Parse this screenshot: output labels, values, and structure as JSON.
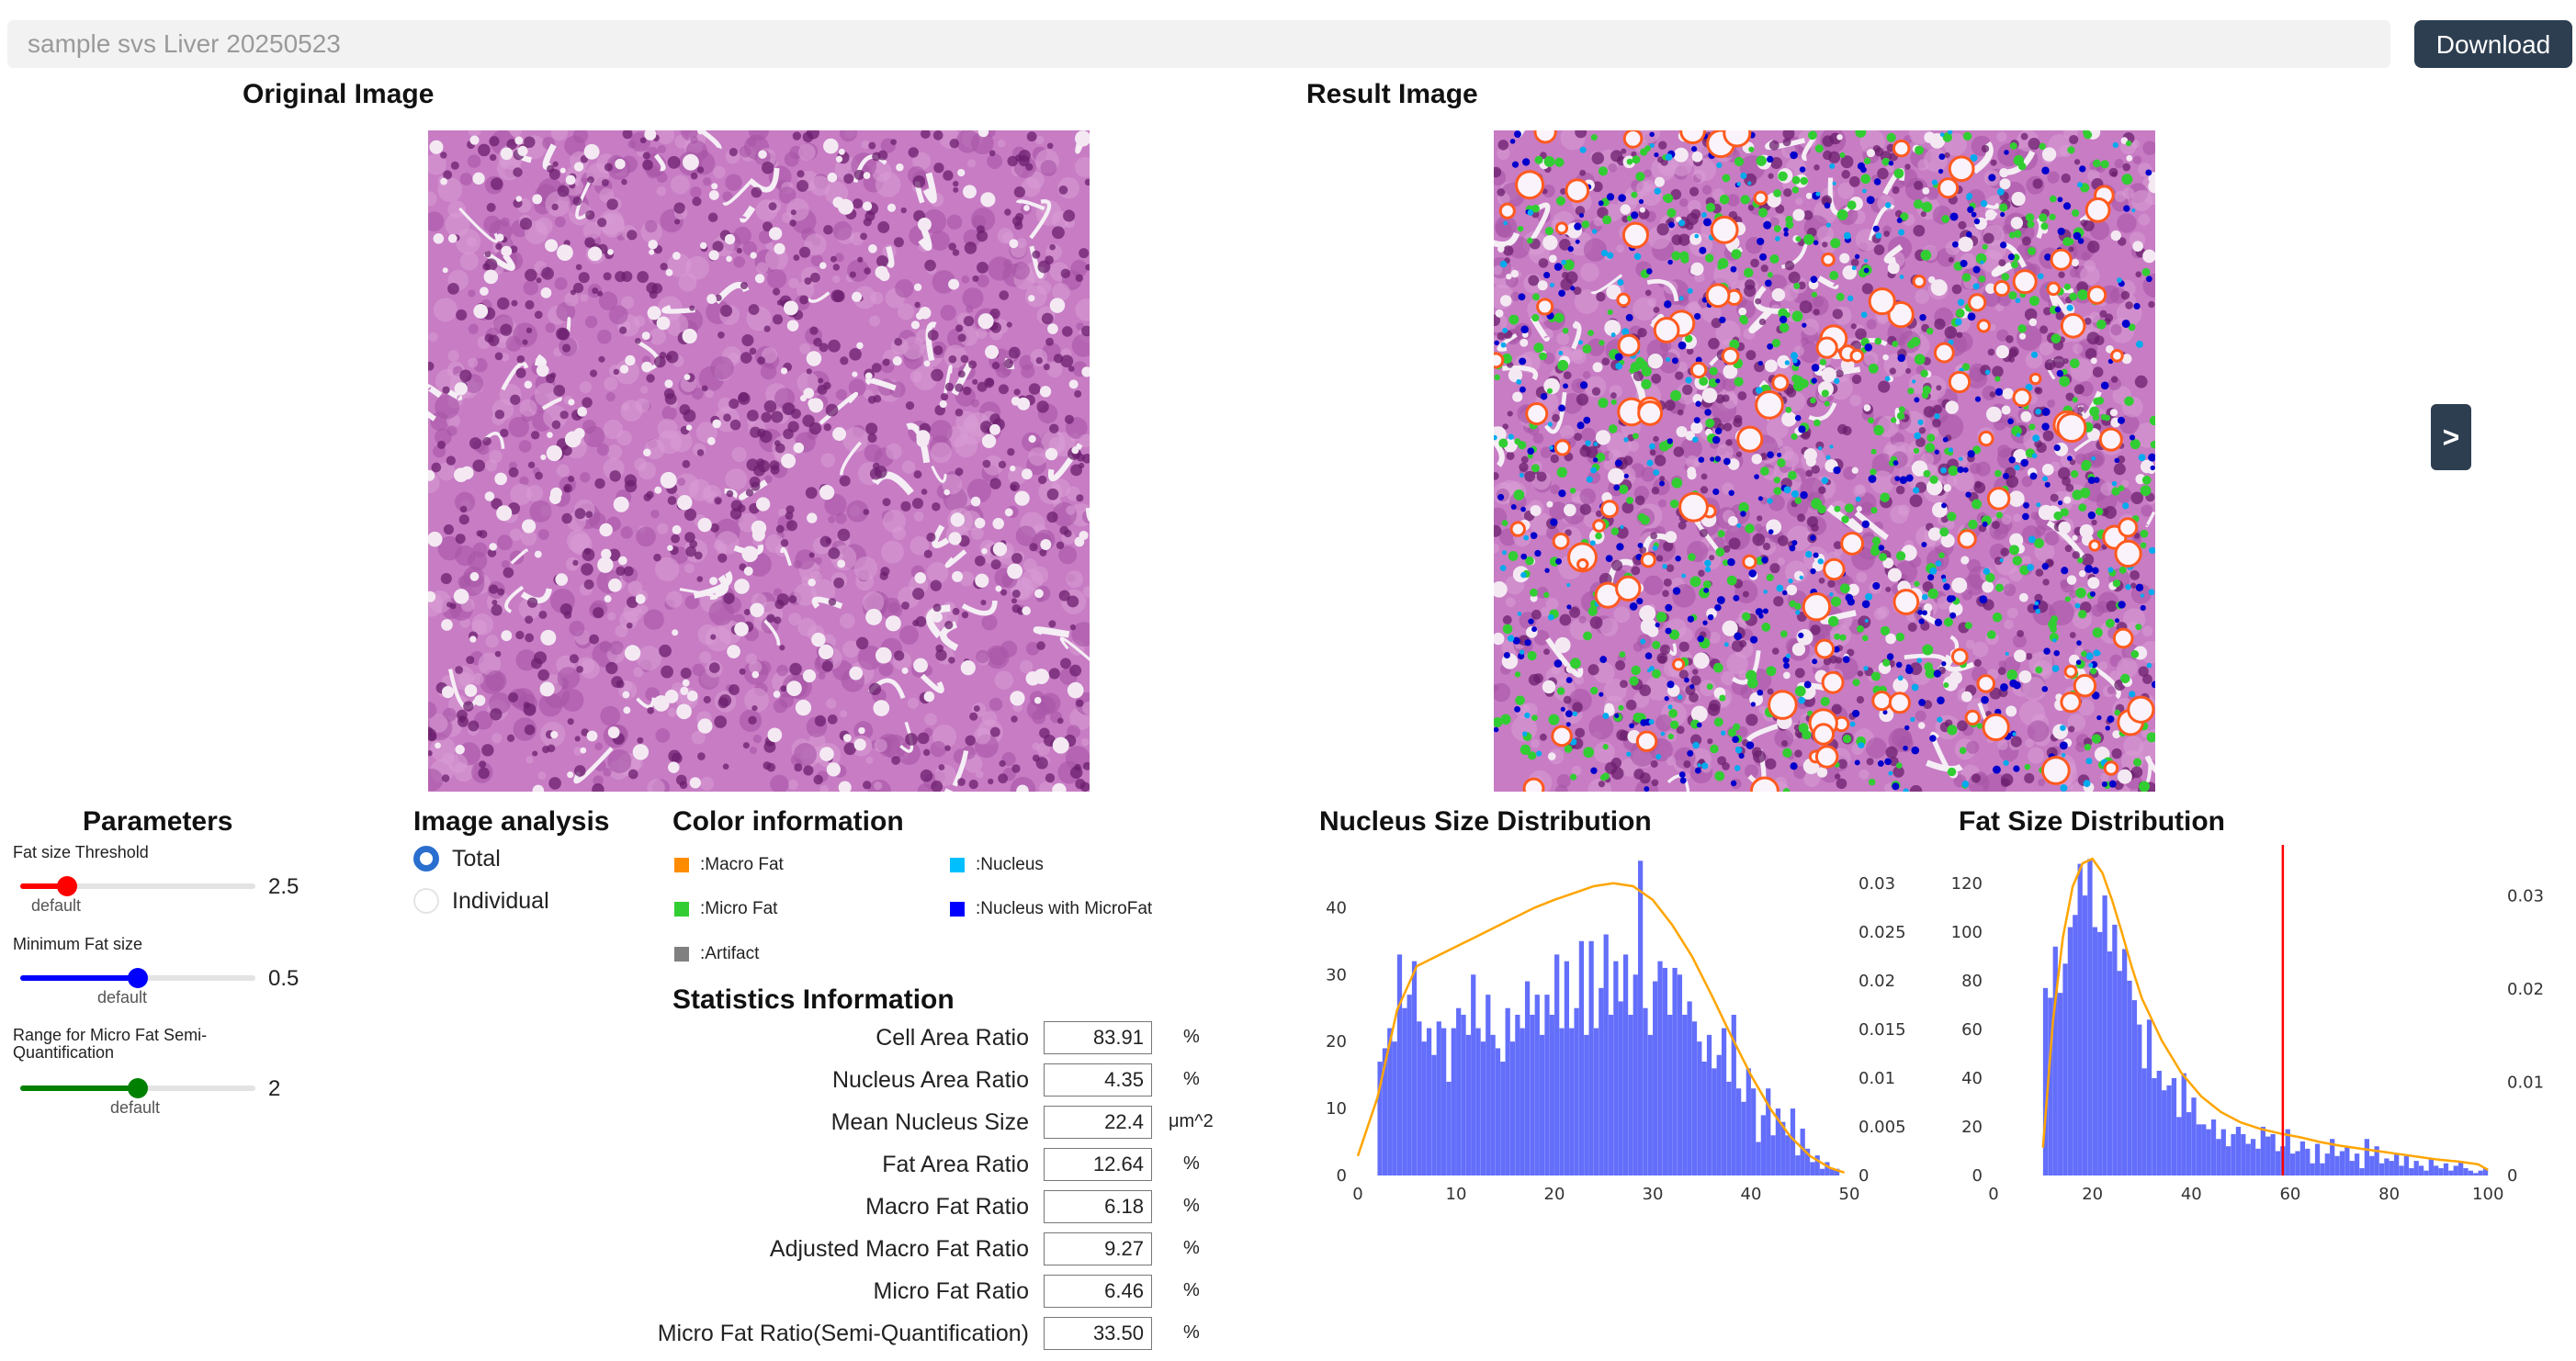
{
  "header": {
    "title_value": "sample svs Liver 20250523",
    "download_label": "Download"
  },
  "panels": {
    "original_title": "Original Image",
    "result_title": "Result Image",
    "next_label": ">"
  },
  "parameters": {
    "title": "Parameters",
    "sliders": [
      {
        "label": "Fat size Threshold",
        "value": "2.5",
        "default_label": "default",
        "color": "#ff0000",
        "level": 0.2
      },
      {
        "label": "Minimum Fat size",
        "value": "0.5",
        "default_label": "default",
        "color": "#0000ff",
        "level": 0.5
      },
      {
        "label": "Range for Micro Fat Semi-Quantification",
        "value": "2",
        "default_label": "default",
        "color": "#008000",
        "level": 0.5
      }
    ]
  },
  "image_analysis": {
    "title": "Image analysis",
    "options": [
      {
        "label": "Total",
        "selected": true
      },
      {
        "label": "Individual",
        "selected": false
      }
    ]
  },
  "color_information": {
    "title": "Color information",
    "items": [
      {
        "label": ":Macro Fat",
        "color": "#ff8c00"
      },
      {
        "label": ":Nucleus",
        "color": "#00bfff"
      },
      {
        "label": ":Micro Fat",
        "color": "#32cd32"
      },
      {
        "label": ":Nucleus with MicroFat",
        "color": "#0000ff"
      },
      {
        "label": ":Artifact",
        "color": "#808080"
      }
    ]
  },
  "statistics": {
    "title": "Statistics Information",
    "rows": [
      {
        "label": "Cell Area Ratio",
        "value": "83.91",
        "unit": "%"
      },
      {
        "label": "Nucleus Area Ratio",
        "value": "4.35",
        "unit": "%"
      },
      {
        "label": "Mean Nucleus Size",
        "value": "22.4",
        "unit": "μm^2"
      },
      {
        "label": "Fat Area Ratio",
        "value": "12.64",
        "unit": "%"
      },
      {
        "label": "Macro Fat Ratio",
        "value": "6.18",
        "unit": "%"
      },
      {
        "label": "Adjusted Macro Fat Ratio",
        "value": "9.27",
        "unit": "%"
      },
      {
        "label": "Micro Fat Ratio",
        "value": "6.46",
        "unit": "%"
      },
      {
        "label": "Micro Fat Ratio(Semi-Quantification)",
        "value": "33.50",
        "unit": "%"
      }
    ]
  },
  "chart_data": [
    {
      "type": "bar",
      "title": "Nucleus Size Distribution",
      "bar_color": "#636efa",
      "curve_color": "#ffa500",
      "x": [
        2.25,
        2.75,
        3.25,
        3.75,
        4.25,
        4.75,
        5.25,
        5.75,
        6.25,
        6.75,
        7.25,
        7.75,
        8.25,
        8.75,
        9.25,
        9.75,
        10.25,
        10.75,
        11.25,
        11.75,
        12.25,
        12.75,
        13.25,
        13.75,
        14.25,
        14.75,
        15.25,
        15.75,
        16.25,
        16.75,
        17.25,
        17.75,
        18.25,
        18.75,
        19.25,
        19.75,
        20.25,
        20.75,
        21.25,
        21.75,
        22.25,
        22.75,
        23.25,
        23.75,
        24.25,
        24.75,
        25.25,
        25.75,
        26.25,
        26.75,
        27.25,
        27.75,
        28.25,
        28.75,
        29.25,
        29.75,
        30.25,
        30.75,
        31.25,
        31.75,
        32.25,
        32.75,
        33.25,
        33.75,
        34.25,
        34.75,
        35.25,
        35.75,
        36.25,
        36.75,
        37.25,
        37.75,
        38.25,
        38.75,
        39.25,
        39.75,
        40.25,
        40.75,
        41.25,
        41.75,
        42.25,
        42.75,
        43.25,
        43.75,
        44.25,
        44.75,
        45.25,
        45.75,
        46.25,
        46.75,
        47.25,
        47.75,
        48.25,
        48.75
      ],
      "y": [
        17,
        19,
        22,
        20,
        33,
        25,
        27,
        32,
        23,
        20,
        22,
        18,
        23,
        22,
        14,
        22,
        25,
        24,
        21,
        30,
        22,
        20,
        27,
        21,
        19,
        17,
        25,
        20,
        24,
        22,
        29,
        24,
        27,
        21,
        27,
        24,
        33,
        22,
        32,
        22,
        25,
        35,
        21,
        35,
        22,
        28,
        36,
        24,
        32,
        26,
        33,
        24,
        30,
        47,
        25,
        21,
        29,
        32,
        31,
        24,
        31,
        30,
        24,
        26,
        23,
        20,
        17,
        21,
        16,
        18,
        22,
        14,
        24,
        13,
        11,
        16,
        13,
        5,
        9,
        13,
        6,
        10,
        8,
        6,
        10,
        3,
        7,
        4,
        2,
        3,
        1,
        2,
        1,
        1
      ],
      "xlim": [
        0,
        50
      ],
      "ylim": [
        0,
        48
      ],
      "x_ticks": [
        "0",
        "10",
        "20",
        "30",
        "40",
        "50"
      ],
      "y_ticks": [
        "0",
        "10",
        "20",
        "30",
        "40"
      ],
      "y2_ticks": [
        "0",
        "0.005",
        "0.01",
        "0.015",
        "0.02",
        "0.025",
        "0.03"
      ],
      "y2lim": [
        0,
        0.033
      ],
      "curve_x": [
        0,
        2,
        4,
        6,
        8,
        10,
        12,
        14,
        16,
        18,
        20,
        22,
        24,
        26,
        28,
        30,
        32,
        34,
        36,
        38,
        40,
        42,
        44,
        46,
        48,
        49.5
      ],
      "curve_y": [
        0.002,
        0.008,
        0.017,
        0.0215,
        0.0225,
        0.0235,
        0.0245,
        0.0255,
        0.0265,
        0.0275,
        0.0283,
        0.029,
        0.0297,
        0.03,
        0.0297,
        0.0283,
        0.0257,
        0.0225,
        0.0185,
        0.0143,
        0.0103,
        0.0068,
        0.004,
        0.002,
        0.0008,
        0.0003
      ]
    },
    {
      "type": "bar",
      "title": "Fat Size Distribution",
      "bar_color": "#636efa",
      "curve_color": "#ffa500",
      "threshold_line": 58.5,
      "threshold_color": "#ff0000",
      "x": [
        10.5,
        11.5,
        12.5,
        13.5,
        14.5,
        15.5,
        16.5,
        17.5,
        18.5,
        19.5,
        20.5,
        21.5,
        22.5,
        23.5,
        24.5,
        25.5,
        26.5,
        27.5,
        28.5,
        29.5,
        30.5,
        31.5,
        32.5,
        33.5,
        34.5,
        35.5,
        36.5,
        37.5,
        38.5,
        39.5,
        40.5,
        41.5,
        42.5,
        43.5,
        44.5,
        45.5,
        46.5,
        47.5,
        48.5,
        49.5,
        50.5,
        51.5,
        52.5,
        53.5,
        54.5,
        55.5,
        56.5,
        57.5,
        58.5,
        59.5,
        60.5,
        61.5,
        62.5,
        63.5,
        64.5,
        65.5,
        66.5,
        67.5,
        68.5,
        69.5,
        70.5,
        71.5,
        72.5,
        73.5,
        74.5,
        75.5,
        76.5,
        77.5,
        78.5,
        79.5,
        80.5,
        81.5,
        82.5,
        83.5,
        84.5,
        85.5,
        86.5,
        87.5,
        88.5,
        89.5,
        90.5,
        91.5,
        92.5,
        93.5,
        94.5,
        95.5,
        96.5,
        97.5,
        98.5,
        99.5
      ],
      "y": [
        77,
        73,
        94,
        75,
        87,
        102,
        107,
        128,
        115,
        130,
        102,
        100,
        115,
        92,
        103,
        84,
        93,
        80,
        72,
        62,
        44,
        64,
        40,
        43,
        35,
        37,
        40,
        24,
        42,
        26,
        32,
        21,
        21,
        19,
        23,
        15,
        19,
        12,
        17,
        20,
        17,
        13,
        15,
        11,
        20,
        16,
        17,
        10,
        12,
        19,
        9,
        10,
        14,
        11,
        5,
        13,
        5,
        9,
        15,
        8,
        10,
        12,
        6,
        9,
        3,
        15,
        8,
        12,
        5,
        7,
        6,
        9,
        4,
        8,
        3,
        6,
        4,
        2,
        7,
        4,
        3,
        5,
        2,
        4,
        6,
        3,
        2,
        1,
        2,
        3
      ],
      "xlim": [
        0,
        102
      ],
      "ylim": [
        0,
        132
      ],
      "x_ticks": [
        "0",
        "20",
        "40",
        "60",
        "80",
        "100"
      ],
      "y_ticks": [
        "0",
        "20",
        "40",
        "60",
        "80",
        "100",
        "120"
      ],
      "y2_ticks": [
        "0",
        "0.01",
        "0.02",
        "0.03"
      ],
      "y2lim": [
        0,
        0.0345
      ],
      "curve_x": [
        10,
        12,
        14,
        16,
        18,
        20,
        22,
        24,
        26,
        28,
        30,
        34,
        38,
        42,
        46,
        50,
        54,
        58,
        62,
        66,
        70,
        74,
        78,
        82,
        86,
        90,
        94,
        98,
        100
      ],
      "curve_y": [
        0.003,
        0.0165,
        0.0255,
        0.031,
        0.0335,
        0.034,
        0.0325,
        0.0295,
        0.026,
        0.0223,
        0.019,
        0.0145,
        0.011,
        0.0085,
        0.0068,
        0.0057,
        0.005,
        0.0045,
        0.0041,
        0.0036,
        0.0032,
        0.0029,
        0.0026,
        0.0023,
        0.002,
        0.0017,
        0.0015,
        0.0012,
        0.0006
      ]
    }
  ]
}
